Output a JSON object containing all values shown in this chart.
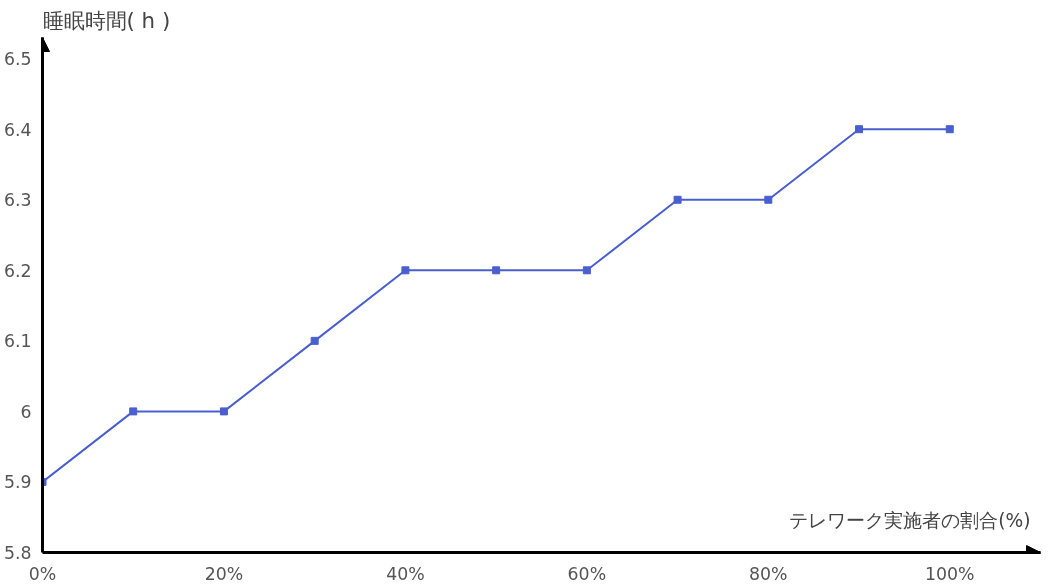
{
  "chart_data": {
    "type": "line",
    "xlabel": "テレワーク実施者の割合(%)",
    "ylabel": "睡眠時間( h )",
    "x": [
      0,
      10,
      20,
      30,
      40,
      50,
      60,
      70,
      80,
      90,
      100
    ],
    "series": [
      {
        "color": "#4a5fcf",
        "values": [
          5.9,
          6.0,
          6.0,
          6.1,
          6.2,
          6.2,
          6.2,
          6.3,
          6.3,
          6.4,
          6.4
        ]
      }
    ],
    "xlim": [
      0,
      110
    ],
    "ylim": [
      5.8,
      6.53
    ],
    "xticks": [
      {
        "value": 0,
        "label": "0%"
      },
      {
        "value": 20,
        "label": "20%"
      },
      {
        "value": 40,
        "label": "40%"
      },
      {
        "value": 60,
        "label": "60%"
      },
      {
        "value": 80,
        "label": "80%"
      },
      {
        "value": 100,
        "label": "100%"
      }
    ],
    "yticks": [
      5.8,
      5.9,
      {
        "value": 6.0,
        "label": "6"
      },
      6.1,
      6.2,
      6.3,
      6.4,
      6.5
    ],
    "grid": false,
    "marker": "square",
    "line_style": "solid"
  }
}
